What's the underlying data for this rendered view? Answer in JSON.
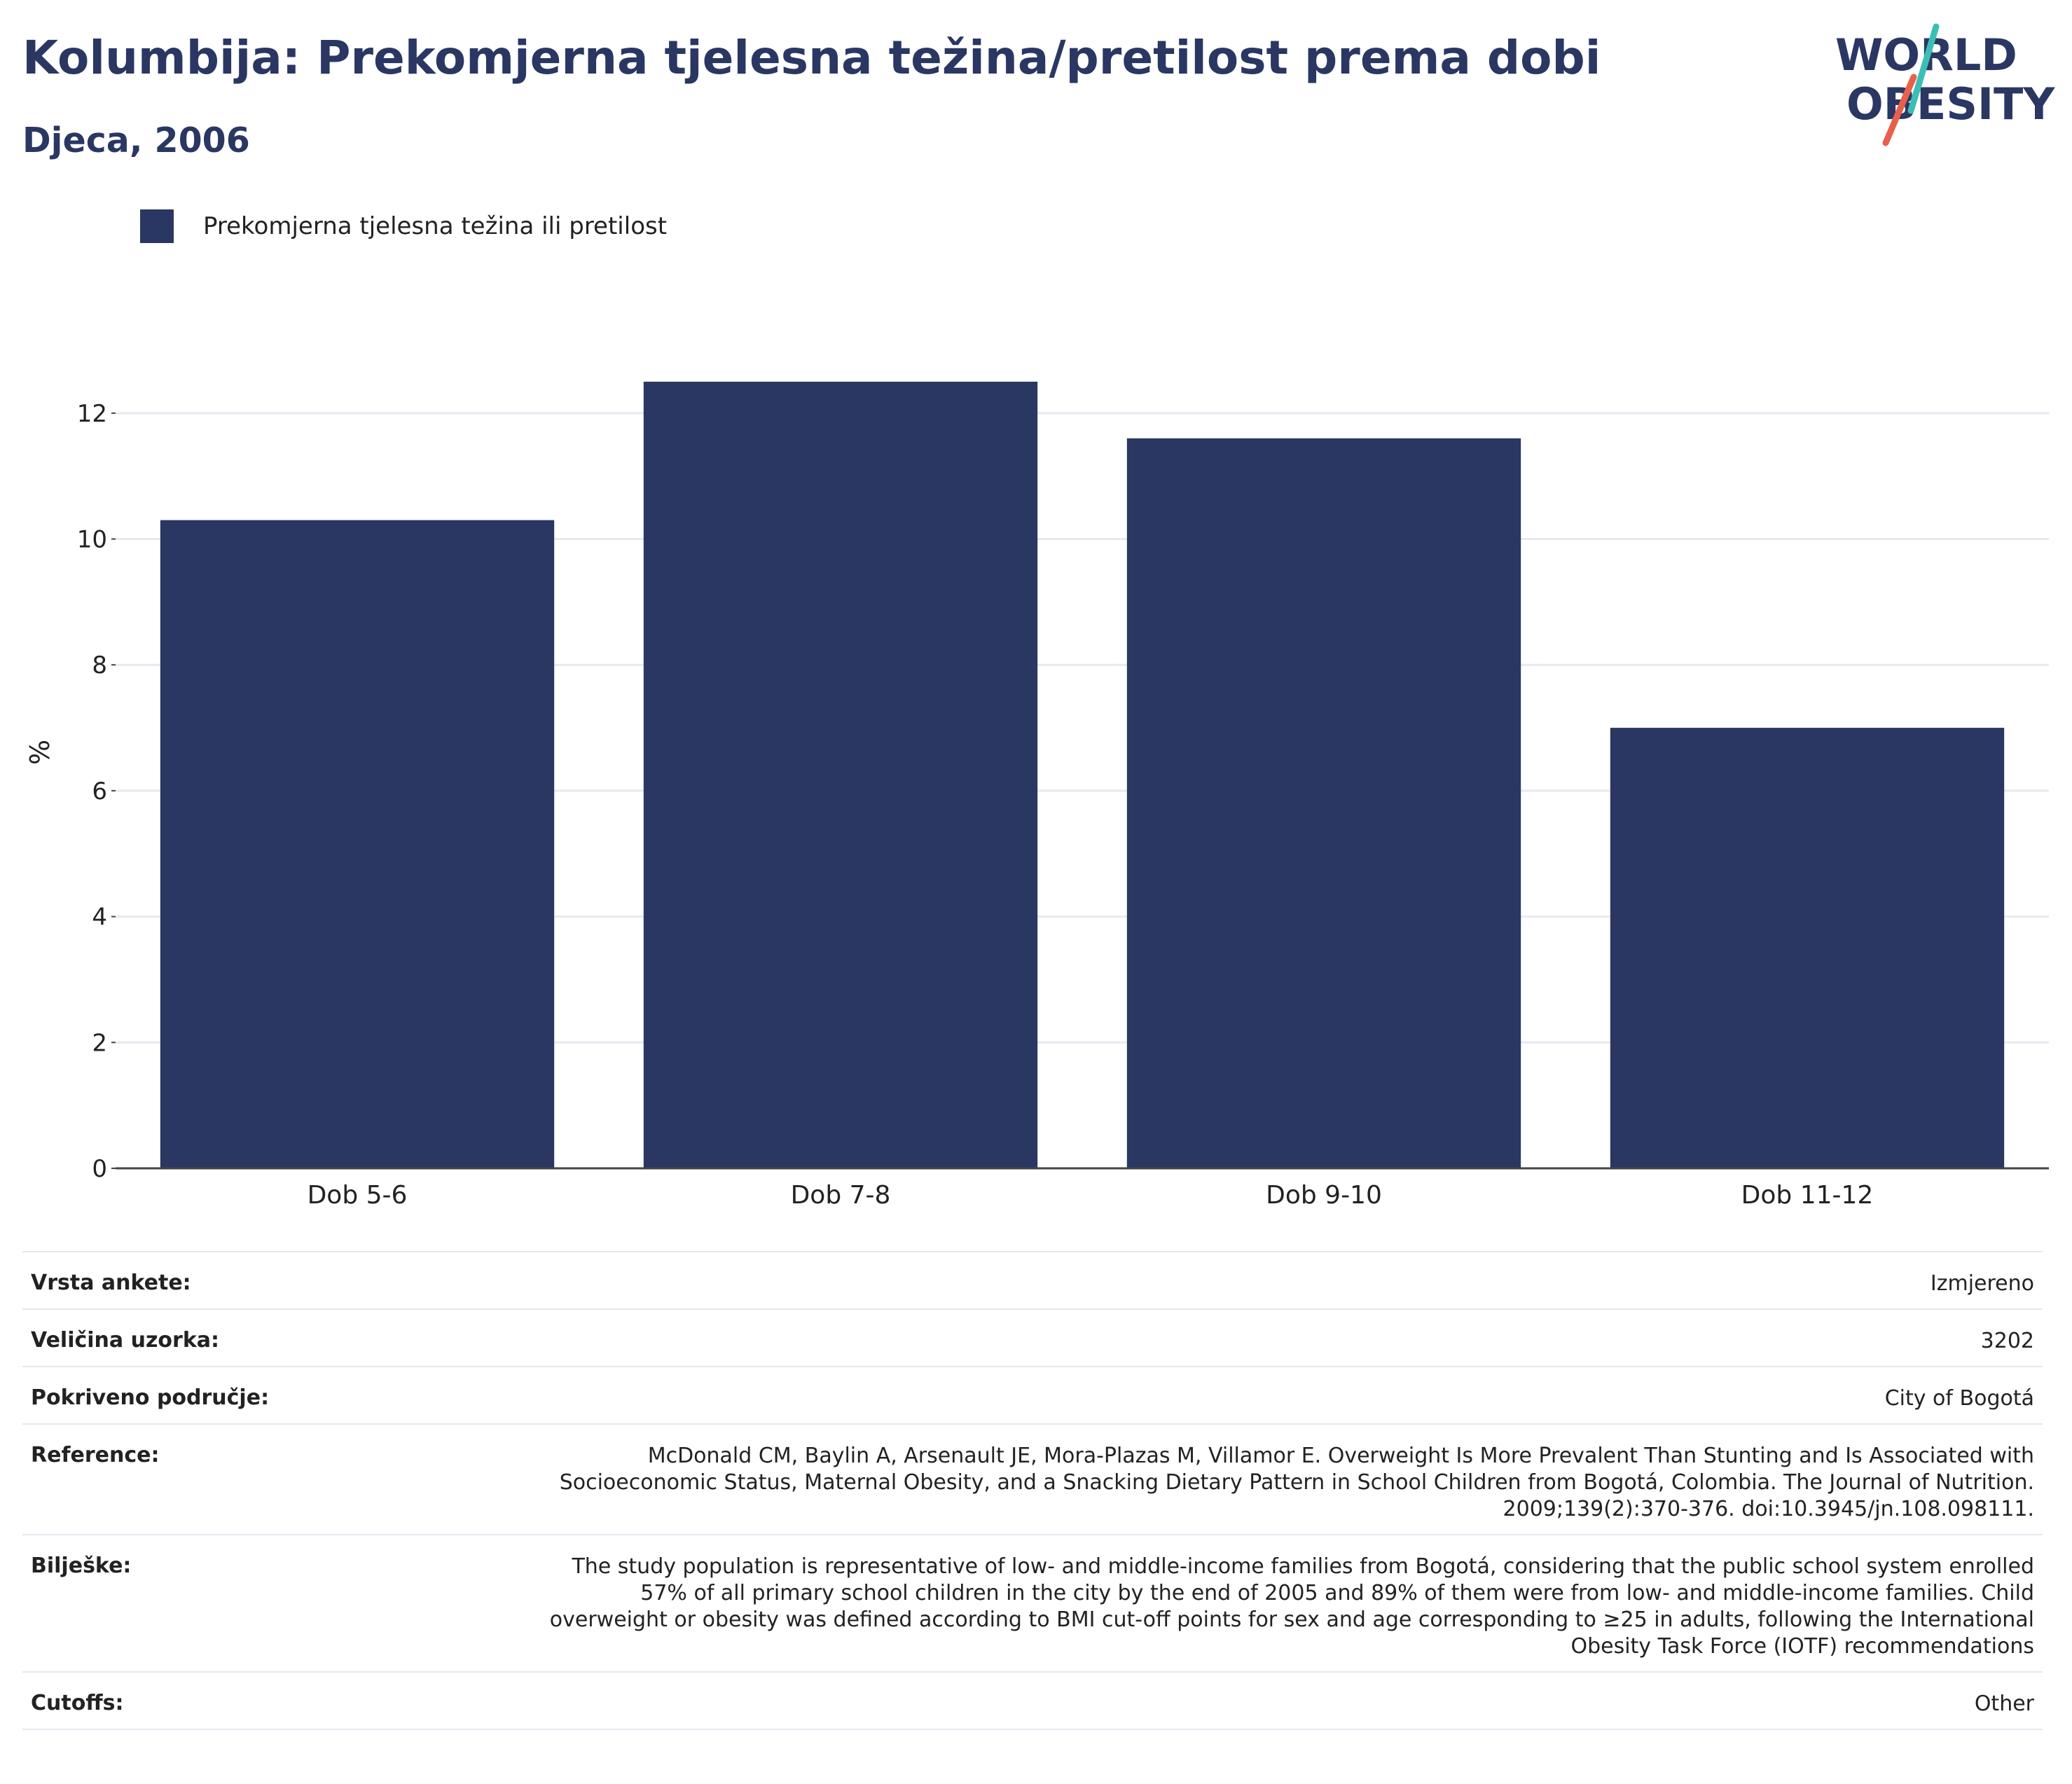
{
  "header": {
    "title": "Kolumbija: Prekomjerna tjelesna težina/pretilost prema dobi",
    "subtitle": "Djeca, 2006"
  },
  "logo": {
    "line1": "WORLD",
    "line2": "OBESITY"
  },
  "legend": {
    "label": "Prekomjerna tjelesna težina ili pretilost"
  },
  "colors": {
    "bar": "#2a3763",
    "title": "#2a3763",
    "logo_teal": "#3bbfb5",
    "logo_red": "#e8604c"
  },
  "chart_data": {
    "type": "bar",
    "categories": [
      "Dob 5-6",
      "Dob 7-8",
      "Dob 9-10",
      "Dob 11-12"
    ],
    "series": [
      {
        "name": "Prekomjerna tjelesna težina ili pretilost",
        "values": [
          10.3,
          12.5,
          11.6,
          7.0
        ]
      }
    ],
    "ylabel": "%",
    "ylim": [
      0,
      13
    ],
    "yticks": [
      0,
      2,
      4,
      6,
      8,
      10,
      12
    ],
    "grid": true,
    "legend_position": "top-left"
  },
  "info": [
    {
      "label": "Vrsta ankete:",
      "value": "Izmjereno"
    },
    {
      "label": "Veličina uzorka:",
      "value": "3202"
    },
    {
      "label": "Pokriveno područje:",
      "value": "City of Bogotá"
    },
    {
      "label": "Reference:",
      "value": "McDonald CM, Baylin A, Arsenault JE, Mora-Plazas M, Villamor E. Overweight Is More Prevalent Than Stunting and Is Associated with Socioeconomic Status, Maternal Obesity, and a Snacking Dietary Pattern in School Children from Bogotá, Colombia. The Journal of Nutrition. 2009;139(2):370-376. doi:10.3945/jn.108.098111."
    },
    {
      "label": "Bilješke:",
      "value": "The study population is representative of low- and middle-income families from Bogotá, considering that the public school system enrolled 57% of all primary school children in the city by the end of 2005 and 89% of them were from low- and middle-income families. Child overweight or obesity was defined according to BMI cut-off points for sex and age corresponding to ≥25 in adults, following the International Obesity Task Force (IOTF) recommendations"
    },
    {
      "label": "Cutoffs:",
      "value": "Other"
    }
  ]
}
